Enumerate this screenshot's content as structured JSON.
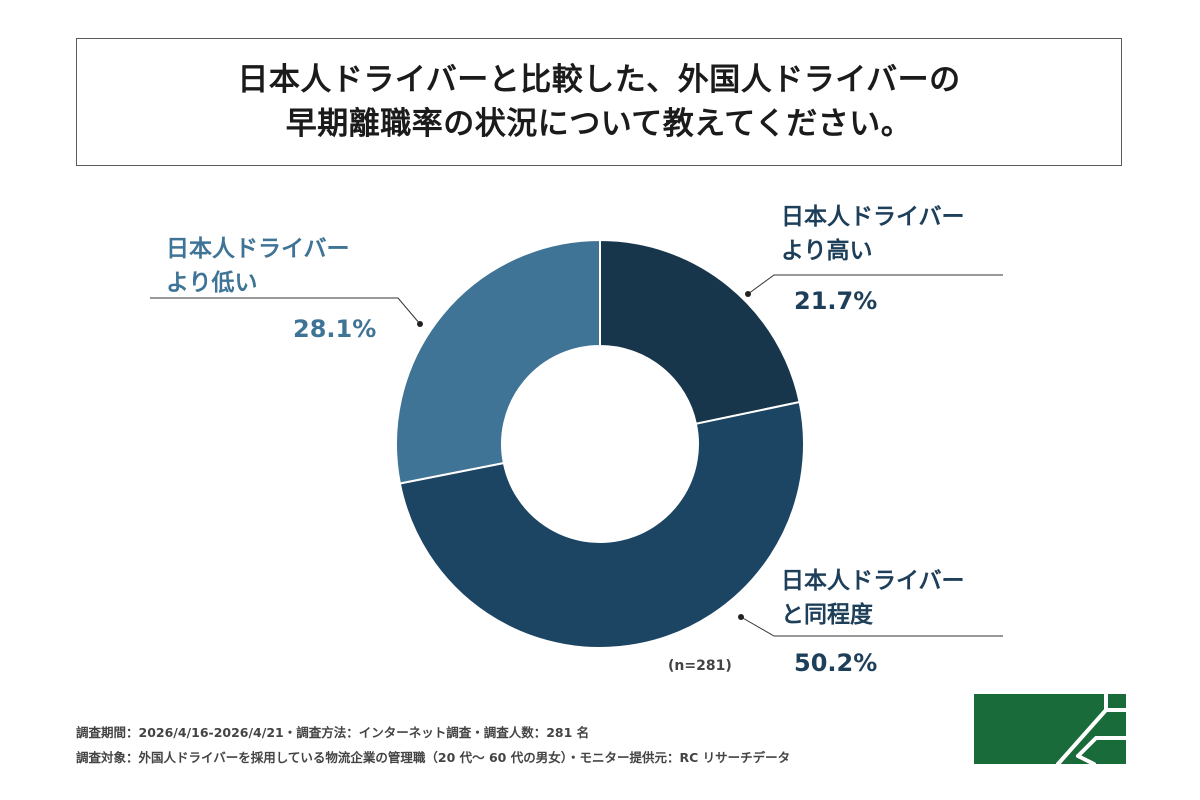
{
  "title": {
    "line1": "日本人ドライバーと比較した、外国人ドライバーの",
    "line2": "早期離職率の状況について教えてください。"
  },
  "chart_data": {
    "type": "pie",
    "variant": "donut",
    "categories": [
      "日本人ドライバーより高い",
      "日本人ドライバーと同程度",
      "日本人ドライバーより低い"
    ],
    "values": [
      21.7,
      50.2,
      28.1
    ],
    "value_labels": [
      "21.7%",
      "50.2%",
      "28.1%"
    ],
    "colors": [
      "#17364b",
      "#1c4463",
      "#3f7496"
    ],
    "n_label": "(n=281)"
  },
  "labels": {
    "high": {
      "line1": "日本人ドライバー",
      "line2": "より高い",
      "pct": "21.7%"
    },
    "low": {
      "line1": "日本人ドライバー",
      "line2": "より低い",
      "pct": "28.1%"
    },
    "same": {
      "line1": "日本人ドライバー",
      "line2": "と同程度",
      "pct": "50.2%"
    }
  },
  "footer": {
    "line1": "調査期間：2026/4/16-2026/4/21・調査方法：インターネット調査・調査人数：281 名",
    "line2": "調査対象：外国人ドライバーを採用している物流企業の管理職（20 代〜 60 代の男女）・モニター提供元：RC リサーチデータ"
  },
  "logo": {
    "color": "#1a6b3a",
    "icon": "company-logo"
  }
}
